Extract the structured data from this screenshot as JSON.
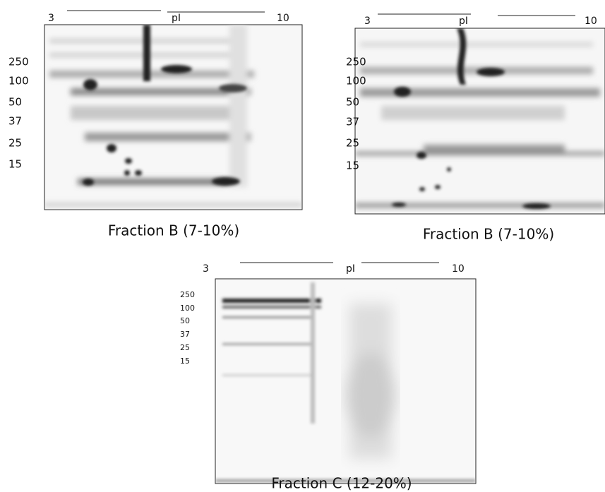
{
  "panels": [
    {
      "ph_start": "3",
      "ph_label": "pI",
      "ph_end": "10",
      "mw_labels": [
        "250",
        "100",
        "50",
        "37",
        "25",
        "15"
      ],
      "caption": "Fraction B (7-10%)"
    },
    {
      "ph_start": "3",
      "ph_label": "pI",
      "ph_end": "10",
      "mw_labels": [
        "250",
        "100",
        "50",
        "37",
        "25",
        "15"
      ],
      "caption": "Fraction B (7-10%)"
    },
    {
      "ph_start": "3",
      "ph_label": "pI",
      "ph_end": "10",
      "mw_labels": [
        "250",
        "100",
        "50",
        "37",
        "25",
        "15"
      ],
      "caption": "Fraction C (12-20%)"
    }
  ]
}
